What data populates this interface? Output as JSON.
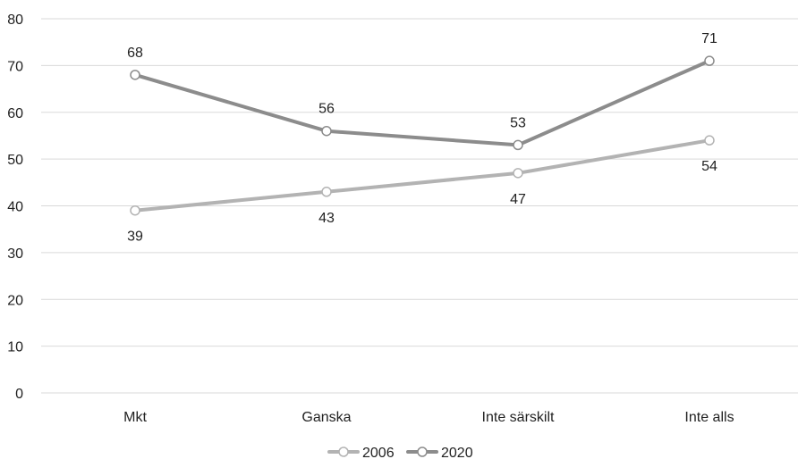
{
  "chart_data": {
    "type": "line",
    "title": "",
    "xlabel": "",
    "ylabel": "",
    "categories": [
      "Mkt",
      "Ganska",
      "Inte särskilt",
      "Inte alls"
    ],
    "ylim": [
      0,
      80
    ],
    "yticks": [
      0,
      10,
      20,
      30,
      40,
      50,
      60,
      70,
      80
    ],
    "grid": true,
    "legend_position": "bottom-center",
    "series": [
      {
        "name": "2006",
        "values": [
          39,
          43,
          47,
          54
        ],
        "color": "#b3b3b3",
        "label_position": "below"
      },
      {
        "name": "2020",
        "values": [
          68,
          56,
          53,
          71
        ],
        "color": "#8c8c8c",
        "label_position": "above"
      }
    ]
  }
}
